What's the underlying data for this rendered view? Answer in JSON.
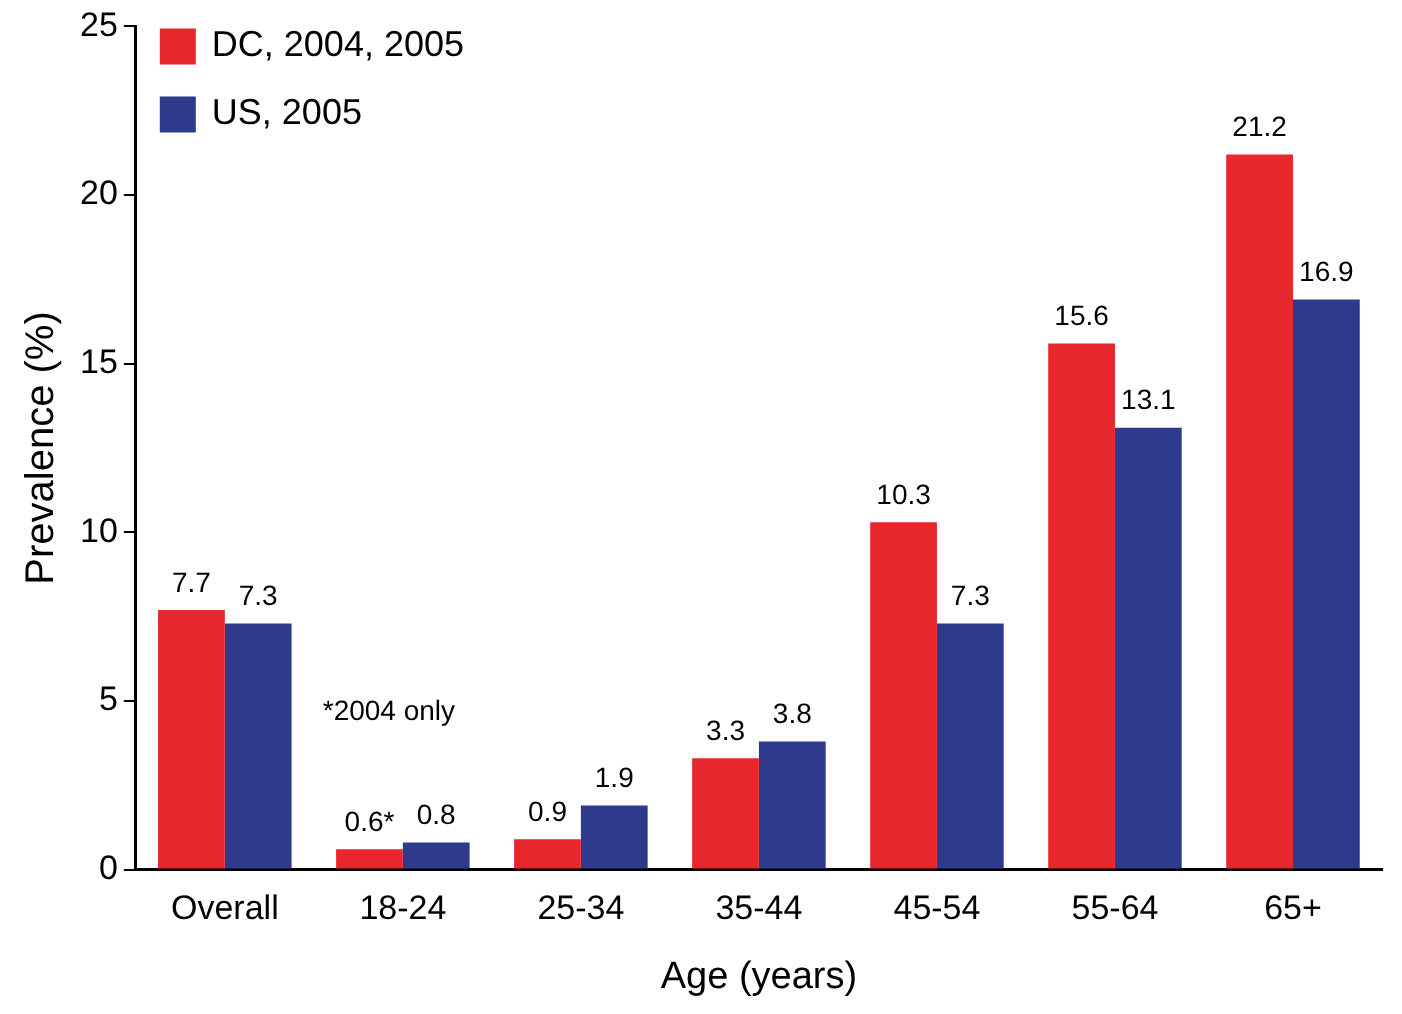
{
  "chart_data": {
    "type": "bar",
    "xlabel": "Age (years)",
    "ylabel": "Prevalence (%)",
    "categories": [
      "Overall",
      "18-24",
      "25-34",
      "35-44",
      "45-54",
      "55-64",
      "65+"
    ],
    "series": [
      {
        "name": "DC, 2004, 2005",
        "color": "#e8262e",
        "values": [
          7.7,
          0.6,
          0.9,
          3.3,
          10.3,
          15.6,
          21.2
        ],
        "value_labels": [
          "7.7",
          "0.6*",
          "0.9",
          "3.3",
          "10.3",
          "15.6",
          "21.2"
        ]
      },
      {
        "name": "US, 2005",
        "color": "#2e3a8c",
        "values": [
          7.3,
          0.8,
          1.9,
          3.8,
          7.3,
          13.1,
          16.9
        ],
        "value_labels": [
          "7.3",
          "0.8",
          "1.9",
          "3.8",
          "7.3",
          "13.1",
          "16.9"
        ]
      }
    ],
    "ylim": [
      0,
      25
    ],
    "yticks": [
      0,
      5,
      10,
      15,
      20,
      25
    ],
    "grid": false,
    "legend": "top left",
    "annotations": [
      "*2004 only"
    ]
  }
}
